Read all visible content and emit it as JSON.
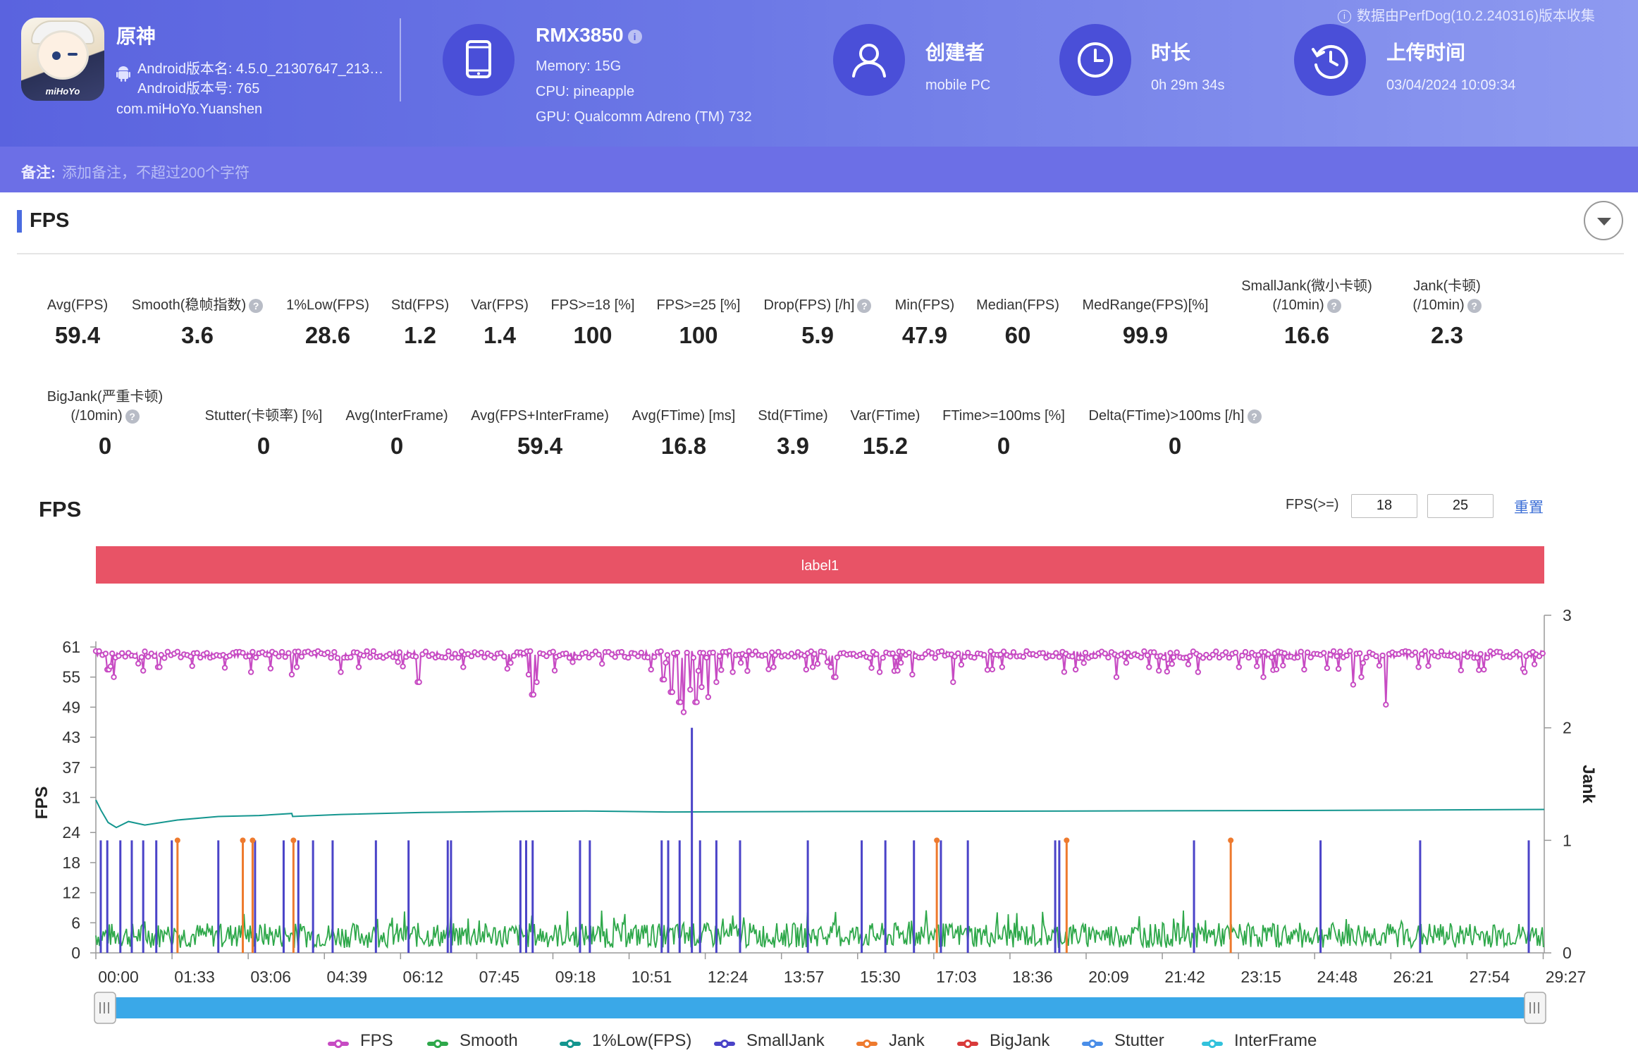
{
  "header": {
    "app": {
      "name": "原神",
      "icon_brand": "miHoYo",
      "version_name": "Android版本名: 4.5.0_21307647_213…",
      "version_code": "Android版本号: 765",
      "package": "com.miHoYo.Yuanshen"
    },
    "device": {
      "model": "RMX3850",
      "memory": "Memory: 15G",
      "cpu": "CPU: pineapple",
      "gpu": "GPU: Qualcomm Adreno (TM) 732",
      "icon": "phone-icon"
    },
    "creator": {
      "label": "创建者",
      "value": "mobile PC",
      "icon": "user-icon"
    },
    "duration": {
      "label": "时长",
      "value": "0h 29m 34s",
      "icon": "clock-icon"
    },
    "upload": {
      "label": "上传时间",
      "value": "03/04/2024 10:09:34",
      "icon": "history-icon"
    },
    "source_note": "数据由PerfDog(10.2.240316)版本收集"
  },
  "note": {
    "label": "备注:",
    "placeholder": "添加备注，不超过200个字符"
  },
  "section": {
    "title": "FPS"
  },
  "metrics_row1": [
    {
      "label": "Avg(FPS)",
      "value": "59.4"
    },
    {
      "label": "Smooth(稳帧指数)",
      "value": "3.6",
      "help": true
    },
    {
      "label": "1%Low(FPS)",
      "value": "28.6"
    },
    {
      "label": "Std(FPS)",
      "value": "1.2"
    },
    {
      "label": "Var(FPS)",
      "value": "1.4"
    },
    {
      "label": "FPS>=18 [%]",
      "value": "100"
    },
    {
      "label": "FPS>=25 [%]",
      "value": "100"
    },
    {
      "label": "Drop(FPS) [/h]",
      "value": "5.9",
      "help": true
    },
    {
      "label": "Min(FPS)",
      "value": "47.9"
    },
    {
      "label": "Median(FPS)",
      "value": "60"
    },
    {
      "label": "MedRange(FPS)[%]",
      "value": "99.9"
    },
    {
      "label": "SmallJank(微小卡顿)",
      "label2": "(/10min)",
      "value": "16.6",
      "help": true
    },
    {
      "label": "Jank(卡顿)",
      "label2": "(/10min)",
      "value": "2.3",
      "help": true
    }
  ],
  "metrics_row2": [
    {
      "label": "BigJank(严重卡顿)",
      "label2": "(/10min)",
      "value": "0",
      "help": true
    },
    {
      "label": "Stutter(卡顿率) [%]",
      "value": "0"
    },
    {
      "label": "Avg(InterFrame)",
      "value": "0"
    },
    {
      "label": "Avg(FPS+InterFrame)",
      "value": "59.4"
    },
    {
      "label": "Avg(FTime) [ms]",
      "value": "16.8"
    },
    {
      "label": "Std(FTime)",
      "value": "3.9"
    },
    {
      "label": "Var(FTime)",
      "value": "15.2"
    },
    {
      "label": "FTime>=100ms [%]",
      "value": "0"
    },
    {
      "label": "Delta(FTime)>100ms [/h]",
      "value": "0",
      "help": true
    }
  ],
  "chart_controls": {
    "title": "FPS",
    "filter_label": "FPS(>=)",
    "threshold1": "18",
    "threshold2": "25",
    "reset_label": "重置"
  },
  "chart_data": {
    "type": "line",
    "label_band": "label1",
    "x_ticks": [
      "00:00",
      "01:33",
      "03:06",
      "04:39",
      "06:12",
      "07:45",
      "09:18",
      "10:51",
      "12:24",
      "13:57",
      "15:30",
      "17:03",
      "18:36",
      "20:09",
      "21:42",
      "23:15",
      "24:48",
      "26:21",
      "27:54",
      "29:27"
    ],
    "x_range_seconds": [
      0,
      1774
    ],
    "y_left": {
      "label": "FPS",
      "ticks": [
        0,
        6,
        12,
        18,
        24,
        31,
        37,
        43,
        49,
        55,
        61
      ],
      "range": [
        0,
        61
      ]
    },
    "y_right": {
      "label": "Jank",
      "ticks": [
        0,
        1,
        2,
        3
      ],
      "range": [
        0,
        3
      ]
    },
    "series": [
      {
        "name": "FPS",
        "color": "#c74bc3",
        "axis": "left",
        "baseline": 59.5,
        "dips": [
          [
            15,
            56.5
          ],
          [
            22,
            55
          ],
          [
            77,
            57
          ],
          [
            190,
            56
          ],
          [
            240,
            55.5
          ],
          [
            246,
            57
          ],
          [
            300,
            56
          ],
          [
            322,
            57
          ],
          [
            370,
            58
          ],
          [
            395,
            54
          ],
          [
            450,
            57
          ],
          [
            530,
            55.5
          ],
          [
            535,
            51.5
          ],
          [
            540,
            54
          ],
          [
            680,
            56.5
          ],
          [
            695,
            54.5
          ],
          [
            705,
            52
          ],
          [
            715,
            50
          ],
          [
            720,
            48
          ],
          [
            728,
            52.5
          ],
          [
            735,
            50
          ],
          [
            742,
            53
          ],
          [
            750,
            51
          ],
          [
            760,
            54
          ],
          [
            780,
            56
          ],
          [
            830,
            57
          ],
          [
            870,
            56.5
          ],
          [
            900,
            57
          ],
          [
            905,
            55
          ],
          [
            960,
            56
          ],
          [
            1000,
            55.5
          ],
          [
            1050,
            54
          ],
          [
            1110,
            57
          ],
          [
            1200,
            56.5
          ],
          [
            1250,
            55
          ],
          [
            1290,
            57
          ],
          [
            1350,
            56
          ],
          [
            1400,
            57
          ],
          [
            1430,
            55
          ],
          [
            1480,
            56.5
          ],
          [
            1540,
            53.5
          ],
          [
            1550,
            55
          ],
          [
            1580,
            49.5
          ],
          [
            1620,
            57
          ],
          [
            1700,
            56.5
          ],
          [
            1750,
            56
          ]
        ]
      },
      {
        "name": "Smooth",
        "color": "#2ea84a",
        "axis": "left",
        "level": 3.5,
        "amplitude": 2.5
      },
      {
        "name": "1%Low(FPS)",
        "color": "#14968f",
        "axis": "left",
        "points": [
          [
            0,
            30.5
          ],
          [
            6,
            28.5
          ],
          [
            15,
            26
          ],
          [
            25,
            25
          ],
          [
            40,
            26.2
          ],
          [
            60,
            25.5
          ],
          [
            100,
            26.5
          ],
          [
            150,
            27.2
          ],
          [
            200,
            27.4
          ],
          [
            240,
            27.8
          ],
          [
            241,
            27.2
          ],
          [
            300,
            27.6
          ],
          [
            400,
            28
          ],
          [
            500,
            28.2
          ],
          [
            600,
            28.3
          ],
          [
            700,
            28.1
          ],
          [
            900,
            28.2
          ],
          [
            1200,
            28.3
          ],
          [
            1500,
            28.4
          ],
          [
            1774,
            28.6
          ]
        ]
      },
      {
        "name": "SmallJank",
        "color": "#4a43c8",
        "axis": "right",
        "events": [
          [
            6,
            1
          ],
          [
            14,
            1
          ],
          [
            30,
            1
          ],
          [
            44,
            1
          ],
          [
            58,
            1
          ],
          [
            74,
            1
          ],
          [
            93,
            1
          ],
          [
            150,
            1
          ],
          [
            195,
            1
          ],
          [
            230,
            1
          ],
          [
            248,
            1
          ],
          [
            266,
            1
          ],
          [
            290,
            1
          ],
          [
            343,
            1
          ],
          [
            383,
            1
          ],
          [
            431,
            1
          ],
          [
            435,
            1
          ],
          [
            520,
            1
          ],
          [
            527,
            1
          ],
          [
            535,
            1
          ],
          [
            593,
            1
          ],
          [
            605,
            1
          ],
          [
            693,
            1
          ],
          [
            701,
            1
          ],
          [
            715,
            1
          ],
          [
            730,
            2
          ],
          [
            740,
            1
          ],
          [
            760,
            1
          ],
          [
            789,
            1
          ],
          [
            872,
            1
          ],
          [
            938,
            1
          ],
          [
            967,
            1
          ],
          [
            1002,
            1
          ],
          [
            1035,
            1
          ],
          [
            1068,
            1
          ],
          [
            1175,
            1
          ],
          [
            1180,
            1
          ],
          [
            1345,
            1
          ],
          [
            1500,
            1
          ],
          [
            1622,
            1
          ],
          [
            1755,
            1
          ]
        ]
      },
      {
        "name": "Jank",
        "color": "#ee7a2e",
        "axis": "right",
        "events": [
          [
            100,
            1
          ],
          [
            180,
            1
          ],
          [
            192,
            1
          ],
          [
            242,
            1
          ],
          [
            1030,
            1
          ],
          [
            1189,
            1
          ],
          [
            1390,
            1
          ]
        ]
      },
      {
        "name": "BigJank",
        "color": "#d93a3a",
        "axis": "right",
        "events": []
      },
      {
        "name": "Stutter",
        "color": "#4a8ee8",
        "axis": "right",
        "events": []
      },
      {
        "name": "InterFrame",
        "color": "#32c2dc",
        "axis": "right",
        "events": []
      }
    ],
    "grid": false,
    "legend_position": "bottom"
  }
}
